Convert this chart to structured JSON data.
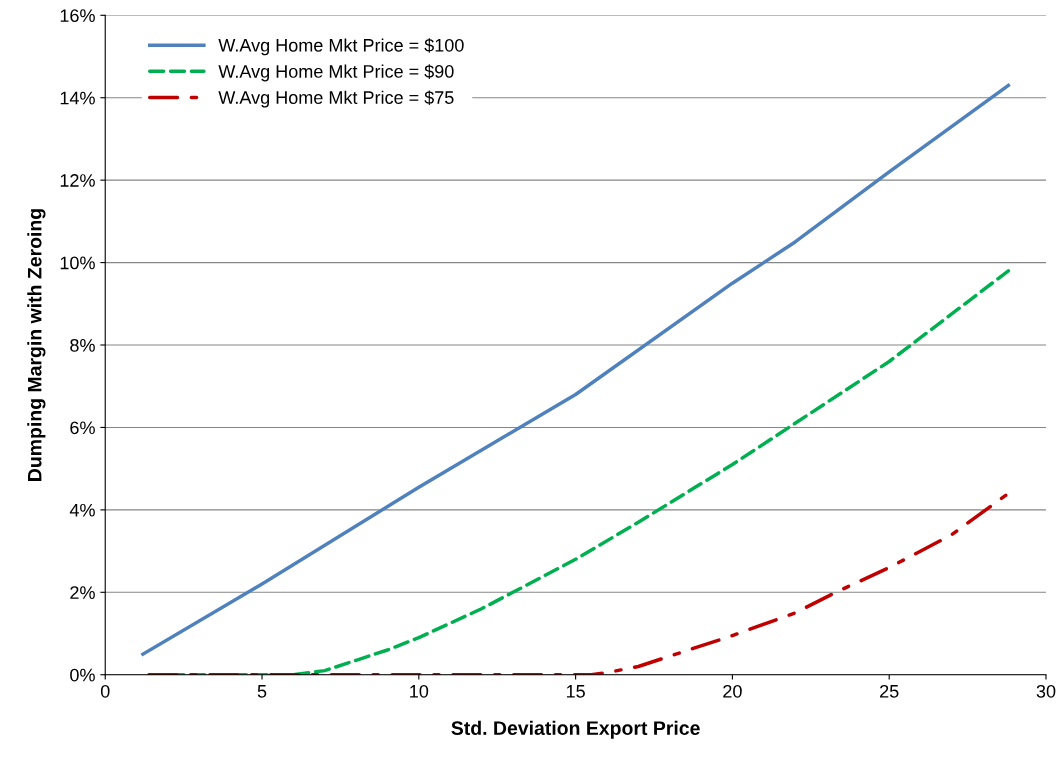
{
  "chart_data": {
    "type": "line",
    "xlabel": "Std. Deviation Export Price",
    "ylabel": "Dumping Margin with Zeroing",
    "xlim": [
      0,
      30
    ],
    "xticks": [
      0,
      5,
      10,
      15,
      20,
      25,
      30
    ],
    "ylim": [
      0,
      16
    ],
    "yticks": [
      {
        "value": 0,
        "label": "0%"
      },
      {
        "value": 2,
        "label": "2%"
      },
      {
        "value": 4,
        "label": "4%"
      },
      {
        "value": 6,
        "label": "6%"
      },
      {
        "value": 8,
        "label": "8%"
      },
      {
        "value": 10,
        "label": "10%"
      },
      {
        "value": 12,
        "label": "12%"
      },
      {
        "value": 14,
        "label": "14%"
      },
      {
        "value": 16,
        "label": "16%"
      }
    ],
    "grid": "y",
    "legend": "top left",
    "marker": "none",
    "series": [
      {
        "name": "W.Avg Home Mkt Price = $100",
        "color": "#4f81bd",
        "line_style": "solid",
        "x": [
          1.2,
          5,
          10,
          15,
          20,
          21,
          22,
          25,
          28.8
        ],
        "values": [
          0.5,
          2.2,
          4.55,
          6.8,
          9.5,
          10.0,
          10.5,
          12.2,
          14.3
        ]
      },
      {
        "name": "W.Avg Home Mkt Price = $90",
        "color": "#00b050",
        "line_style": "dashed",
        "x": [
          1.4,
          6,
          7,
          8,
          9,
          10,
          12,
          13,
          15,
          17,
          20,
          22,
          25,
          28.8
        ],
        "values": [
          0,
          0,
          0.1,
          0.35,
          0.6,
          0.9,
          1.6,
          2.0,
          2.8,
          3.7,
          5.1,
          6.1,
          7.6,
          9.8
        ]
      },
      {
        "name": "W.Avg Home Mkt Price = $75",
        "color": "#c00000",
        "line_style": "dashdot",
        "x": [
          1.4,
          15.5,
          16,
          17,
          18,
          20,
          22,
          23.3,
          25,
          27,
          28.8
        ],
        "values": [
          0,
          0,
          0.05,
          0.2,
          0.45,
          0.95,
          1.5,
          2.0,
          2.6,
          3.4,
          4.4
        ]
      }
    ]
  }
}
